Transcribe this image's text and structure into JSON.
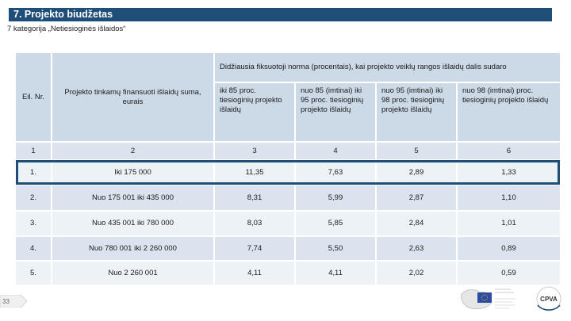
{
  "title": "7. Projekto biudžetas",
  "subtitle": "7 kategorija „Netiesioginės išlaidos“",
  "table": {
    "header": {
      "col_nr": "Eil. Nr.",
      "col_amount": "Projekto tinkamų finansuoti išlaidų suma, eurais",
      "group": "Didžiausia fiksuotoji norma (procentais), kai projekto veiklų rangos išlaidų dalis sudaro",
      "sub": [
        "iki 85 proc. tiesioginių projekto išlaidų",
        "nuo 85 (imtinai) iki 95 proc. tiesioginių projekto išlaidų",
        "nuo 95 (imtinai) iki 98 proc. tiesioginių projekto išlaidų",
        "nuo 98 (imtinai) proc. tiesioginių projekto išlaidų"
      ]
    },
    "numbers_row": [
      "1",
      "2",
      "3",
      "4",
      "5",
      "6"
    ],
    "rows": [
      {
        "nr": "1.",
        "amount": "Iki 175 000",
        "v1": "11,35",
        "v2": "7,63",
        "v3": "2,89",
        "v4": "1,33"
      },
      {
        "nr": "2.",
        "amount": "Nuo 175 001 iki 435 000",
        "v1": "8,31",
        "v2": "5,99",
        "v3": "2,87",
        "v4": "1,10"
      },
      {
        "nr": "3.",
        "amount": "Nuo 435 001 iki 780 000",
        "v1": "8,03",
        "v2": "5,85",
        "v3": "2,84",
        "v4": "1,01"
      },
      {
        "nr": "4.",
        "amount": "Nuo 780 001 iki 2 260 000",
        "v1": "7,74",
        "v2": "5,50",
        "v3": "2,63",
        "v4": "0,89"
      },
      {
        "nr": "5.",
        "amount": "Nuo 2 260 001",
        "v1": "4,11",
        "v2": "4,11",
        "v3": "2,02",
        "v4": "0,59"
      }
    ]
  },
  "page_number": "33",
  "logo": {
    "cpva": "CPVA"
  },
  "colors": {
    "accent": "#1f4e79",
    "header_bg": "#ccd9e6",
    "row_a": "#dbe4ee",
    "row_b": "#edf2f7"
  }
}
